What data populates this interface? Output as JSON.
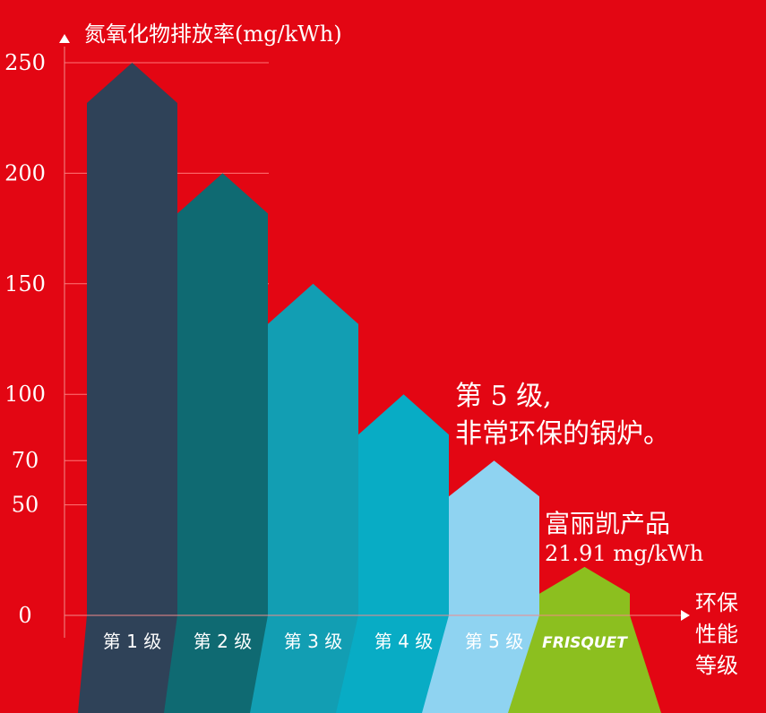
{
  "chart_data": {
    "type": "bar",
    "ylabel": "氮氧化物排放率(mg/kWh)",
    "xlabel_lines": [
      "环保",
      "性能",
      "等级"
    ],
    "yticks": [
      0,
      50,
      70,
      100,
      150,
      200,
      250
    ],
    "ylim": [
      0,
      250
    ],
    "grid": true,
    "categories": [
      "第 1 级",
      "第 2 级",
      "第 3 级",
      "第 4 级",
      "第 5 级",
      "FRISQUET"
    ],
    "values": [
      250,
      200,
      150,
      100,
      70,
      21.91
    ],
    "colors": [
      "#2f4258",
      "#0f6a72",
      "#129eb3",
      "#08acc5",
      "#8fd3f1",
      "#8cbf1f"
    ],
    "annotations": {
      "level5_line1": "第 5 级,",
      "level5_line2": "非常环保的锅炉。",
      "product_line1": "富丽凯产品",
      "product_line2": "21.91 mg/kWh"
    }
  }
}
